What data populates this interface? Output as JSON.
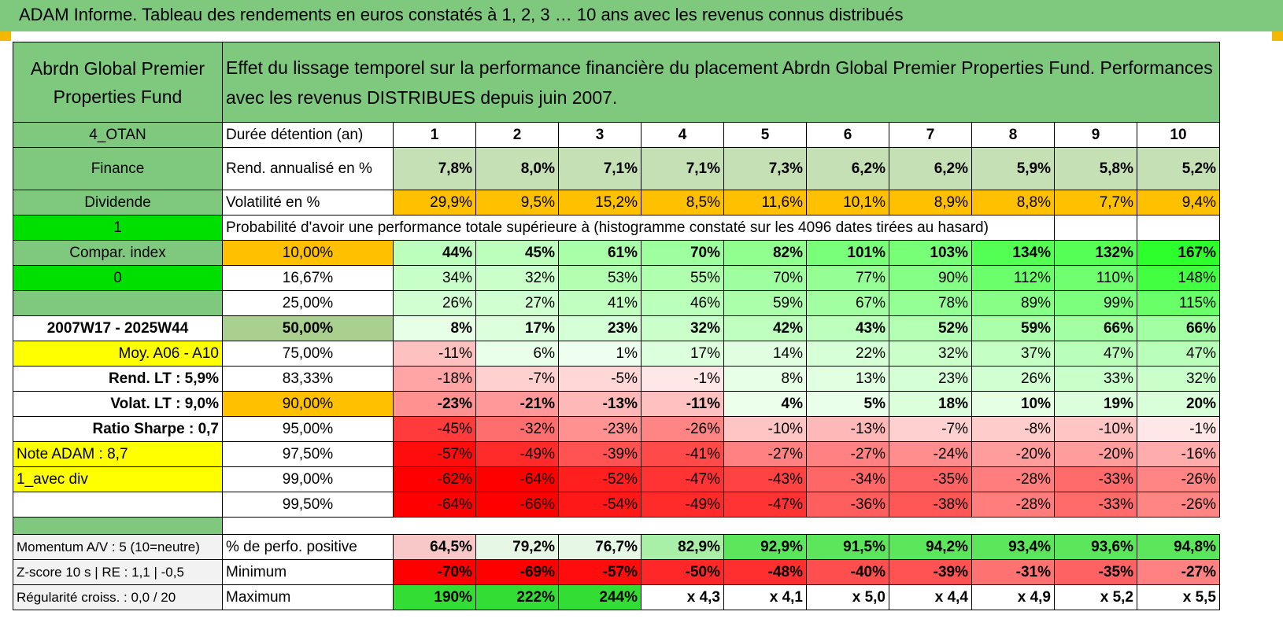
{
  "title": "ADAM Informe. Tableau des rendements en euros constatés à 1, 2, 3 … 10 ans avec les revenus connus distribués",
  "header": {
    "fund_name": "Abrdn Global Premier Properties Fund",
    "description": "Effet du lissage temporel sur la performance financière du placement Abrdn Global Premier Properties Fund. Performances avec les revenus DISTRIBUES depuis juin 2007."
  },
  "left_labels": {
    "code": "4_OTAN",
    "sector": "Finance",
    "type": "Dividende",
    "flag1": "1",
    "compar": "Compar. index",
    "flag0": "0",
    "period": "2007W17 - 2025W44",
    "moy": "Moy. A06 - A10",
    "rend_lt": "Rend. LT :   5,9%",
    "volat_lt": "Volat. LT :   9,0%",
    "sharpe": "Ratio Sharpe :    0,7",
    "note": "Note ADAM : 8,7",
    "variant": "1_avec div",
    "momentum": "Momentum A/V : 5 (10=neutre)",
    "zscore": "Z-score 10 s | RE : 1,1 | -0,5",
    "regularite": "Régularité croiss. : 0,0 / 20"
  },
  "durations": {
    "label": "Durée détention (an)",
    "values": [
      "1",
      "2",
      "3",
      "4",
      "5",
      "6",
      "7",
      "8",
      "9",
      "10"
    ]
  },
  "rend": {
    "label": "Rend. annualisé en %",
    "values": [
      "7,8%",
      "8,0%",
      "7,1%",
      "7,1%",
      "7,3%",
      "6,2%",
      "6,2%",
      "5,9%",
      "5,8%",
      "5,2%"
    ]
  },
  "volat": {
    "label": "Volatilité en %",
    "values": [
      "29,9%",
      "9,5%",
      "15,2%",
      "8,5%",
      "11,6%",
      "10,1%",
      "8,9%",
      "8,8%",
      "7,7%",
      "9,4%"
    ]
  },
  "proba_header": "Probabilité d'avoir une performance totale supérieure à (histogramme constaté sur les 4096 dates tirées au hasard)",
  "proba_rows": [
    {
      "pct": "10,00%",
      "values": [
        "44%",
        "45%",
        "61%",
        "70%",
        "82%",
        "101%",
        "103%",
        "134%",
        "132%",
        "167%"
      ]
    },
    {
      "pct": "16,67%",
      "values": [
        "34%",
        "32%",
        "53%",
        "55%",
        "70%",
        "77%",
        "90%",
        "112%",
        "110%",
        "148%"
      ]
    },
    {
      "pct": "25,00%",
      "values": [
        "26%",
        "27%",
        "41%",
        "46%",
        "59%",
        "67%",
        "78%",
        "89%",
        "99%",
        "115%"
      ]
    },
    {
      "pct": "50,00%",
      "values": [
        "8%",
        "17%",
        "23%",
        "32%",
        "42%",
        "43%",
        "52%",
        "59%",
        "66%",
        "66%"
      ]
    },
    {
      "pct": "75,00%",
      "values": [
        "-11%",
        "6%",
        "1%",
        "17%",
        "14%",
        "22%",
        "32%",
        "37%",
        "47%",
        "47%"
      ]
    },
    {
      "pct": "83,33%",
      "values": [
        "-18%",
        "-7%",
        "-5%",
        "-1%",
        "8%",
        "13%",
        "23%",
        "26%",
        "33%",
        "32%"
      ]
    },
    {
      "pct": "90,00%",
      "values": [
        "-23%",
        "-21%",
        "-13%",
        "-11%",
        "4%",
        "5%",
        "18%",
        "10%",
        "19%",
        "20%"
      ]
    },
    {
      "pct": "95,00%",
      "values": [
        "-45%",
        "-32%",
        "-23%",
        "-26%",
        "-10%",
        "-13%",
        "-7%",
        "-8%",
        "-10%",
        "-1%"
      ]
    },
    {
      "pct": "97,50%",
      "values": [
        "-57%",
        "-49%",
        "-39%",
        "-41%",
        "-27%",
        "-27%",
        "-24%",
        "-20%",
        "-20%",
        "-16%"
      ]
    },
    {
      "pct": "99,00%",
      "values": [
        "-62%",
        "-64%",
        "-52%",
        "-47%",
        "-43%",
        "-34%",
        "-35%",
        "-28%",
        "-33%",
        "-26%"
      ]
    },
    {
      "pct": "99,50%",
      "values": [
        "-64%",
        "-66%",
        "-54%",
        "-49%",
        "-47%",
        "-36%",
        "-38%",
        "-28%",
        "-33%",
        "-26%"
      ]
    }
  ],
  "positive": {
    "label": "% de perfo. positive",
    "values": [
      "64,5%",
      "79,2%",
      "76,7%",
      "82,9%",
      "92,9%",
      "91,5%",
      "94,2%",
      "93,4%",
      "93,6%",
      "94,8%"
    ]
  },
  "minimum": {
    "label": "Minimum",
    "values": [
      "-70%",
      "-69%",
      "-57%",
      "-50%",
      "-48%",
      "-40%",
      "-39%",
      "-31%",
      "-35%",
      "-27%"
    ]
  },
  "maximum": {
    "label": "Maximum",
    "values": [
      "190%",
      "222%",
      "244%",
      "x 4,3",
      "x 4,1",
      "x 5,0",
      "x 4,4",
      "x 4,9",
      "x 5,2",
      "x 5,5"
    ]
  },
  "colors": {
    "header_green": "#7fc97f",
    "light_green": "#c5e0b4",
    "orange": "#ffc000",
    "bright_green": "#00e000",
    "yellow": "#ffff00",
    "label_red": "#d40000"
  }
}
